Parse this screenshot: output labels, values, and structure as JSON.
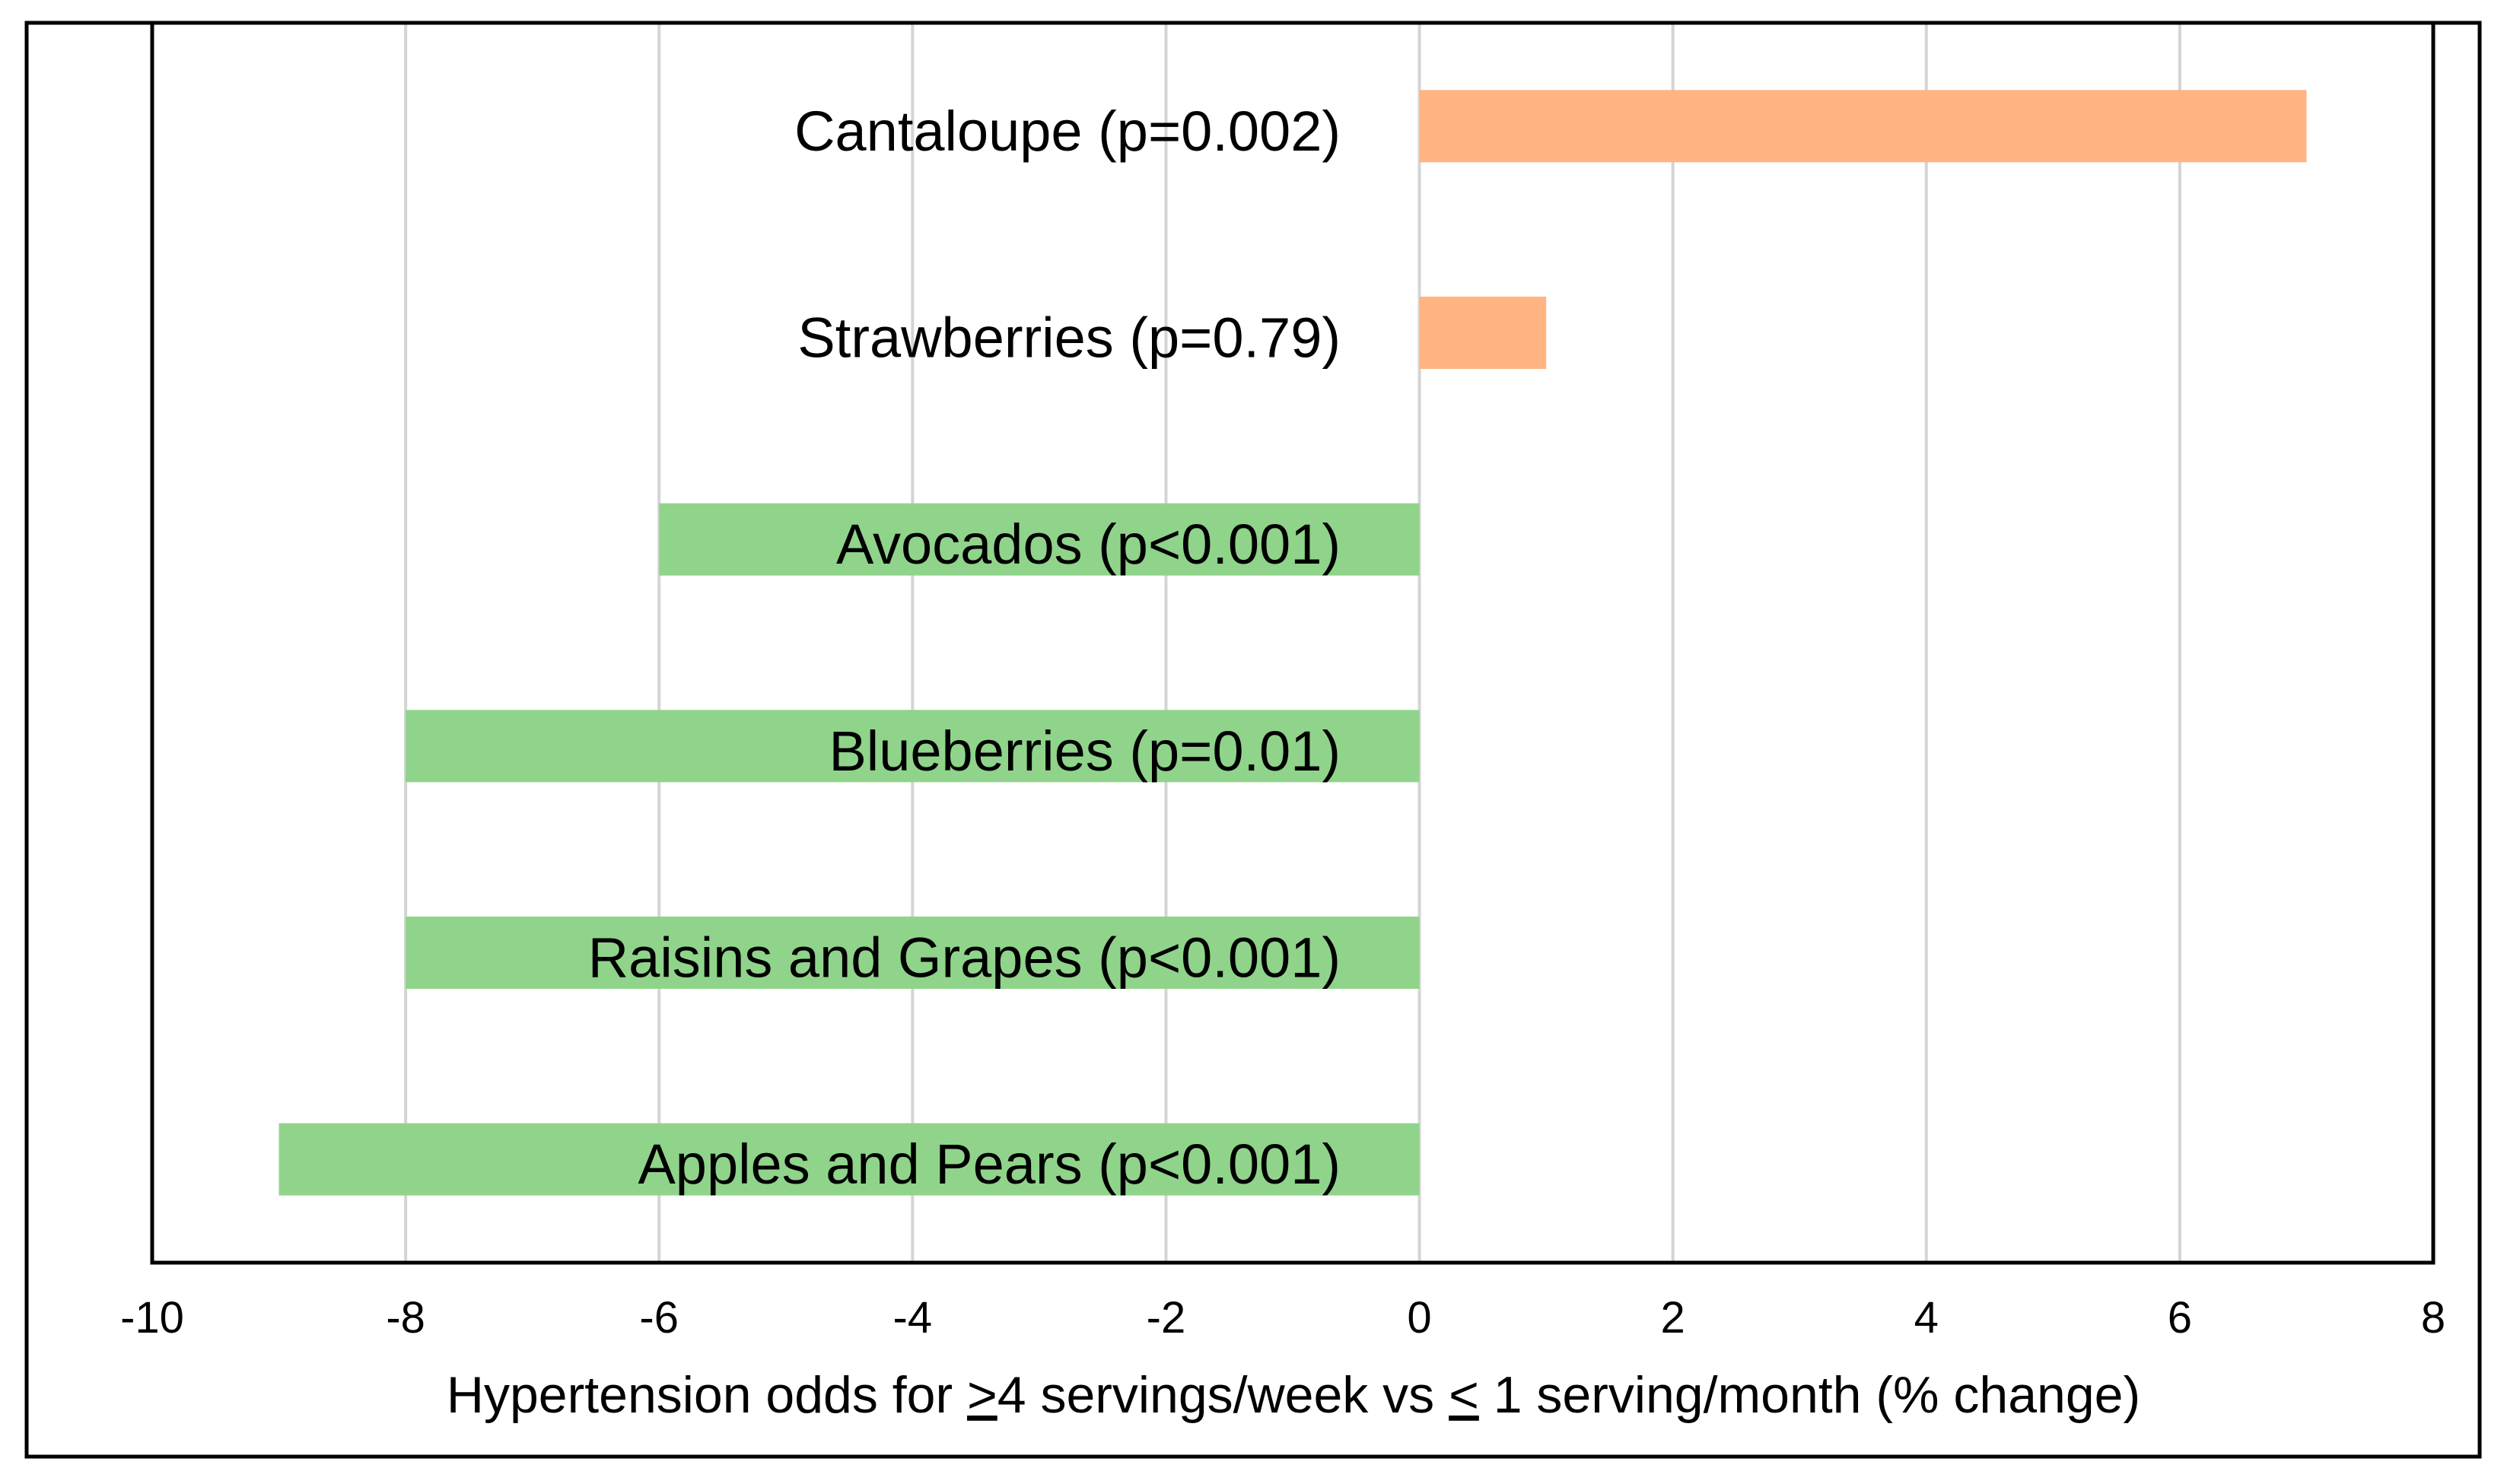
{
  "chart_data": {
    "type": "bar",
    "orientation": "horizontal",
    "title": "",
    "categories": [
      "Cantaloupe  (p=0.002)",
      "Strawberries  (p=0.79)",
      "Avocados (p<0.001)",
      "Blueberries  (p=0.01)",
      "Raisins and Grapes (p<0.001)",
      "Apples and Pears (p<0.001)"
    ],
    "values": [
      7,
      1,
      -6,
      -8,
      -8,
      -9
    ],
    "xlim": [
      -10,
      8
    ],
    "xticks": [
      -10,
      -8,
      -6,
      -4,
      -2,
      0,
      2,
      4,
      6,
      8
    ],
    "xtick_labels": [
      "-10",
      "-8",
      "-6",
      "-4",
      "-2",
      "0",
      "2",
      "4",
      "6",
      "8"
    ],
    "xlabel": {
      "part1": "Hypertension odds for ",
      "ge_symbol": ">",
      "part2": "4 servings/week  vs ",
      "le_symbol": "<",
      "part3": " 1 serving/month  (% change)"
    },
    "ylabel": "",
    "grid": "vertical",
    "legend": "none",
    "colors": {
      "positive": "#ffb482",
      "negative": "#8fd48a",
      "grid": "#d4d4d4",
      "axis": "#000000"
    }
  }
}
